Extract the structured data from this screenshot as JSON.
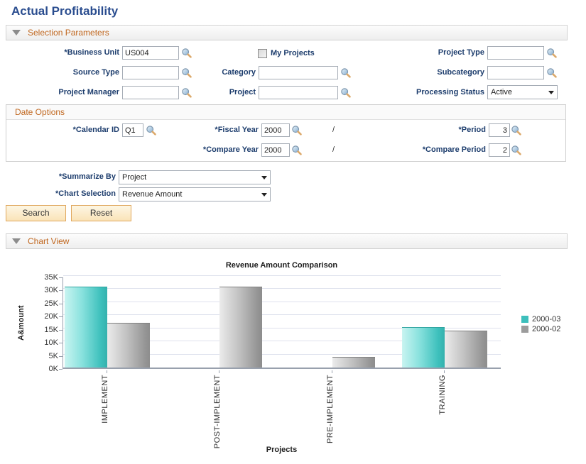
{
  "page": {
    "title": "Actual Profitability"
  },
  "sections": {
    "selection": {
      "label": "Selection Parameters"
    },
    "chart_view": {
      "label": "Chart View"
    }
  },
  "form": {
    "business_unit": {
      "label": "*Business Unit",
      "value": "US004"
    },
    "my_projects": {
      "label": "My Projects",
      "checked": false
    },
    "project_type": {
      "label": "Project Type",
      "value": ""
    },
    "source_type": {
      "label": "Source Type",
      "value": ""
    },
    "category": {
      "label": "Category",
      "value": ""
    },
    "subcategory": {
      "label": "Subcategory",
      "value": ""
    },
    "project_manager": {
      "label": "Project Manager",
      "value": ""
    },
    "project": {
      "label": "Project",
      "value": ""
    },
    "processing_status": {
      "label": "Processing Status",
      "value": "Active"
    },
    "summarize_by": {
      "label": "*Summarize By",
      "value": "Project"
    },
    "chart_selection": {
      "label": "*Chart Selection",
      "value": "Revenue Amount"
    },
    "search_button": "Search",
    "reset_button": "Reset"
  },
  "date_options": {
    "label": "Date Options",
    "calendar_id": {
      "label": "*Calendar ID",
      "value": "Q1"
    },
    "fiscal_year": {
      "label": "*Fiscal Year",
      "value": "2000"
    },
    "period": {
      "label": "*Period",
      "value": "3"
    },
    "compare_year": {
      "label": "*Compare Year",
      "value": "2000"
    },
    "compare_period": {
      "label": "*Compare Period",
      "value": "2"
    },
    "separator": "/"
  },
  "chart_data": {
    "type": "bar",
    "title": "Revenue Amount Comparison",
    "xlabel": "Projects",
    "ylabel": "A&mount",
    "categories": [
      "IMPLEMENT",
      "POST-IMPLEMENT",
      "PRE-IMPLEMENT",
      "TRAINING"
    ],
    "series": [
      {
        "name": "2000-03",
        "color": "#3dbfbc",
        "values": [
          31000,
          0,
          0,
          15500
        ]
      },
      {
        "name": "2000-02",
        "color": "#9c9c9c",
        "values": [
          17000,
          31000,
          4000,
          14000
        ]
      }
    ],
    "ylim": [
      0,
      35000
    ],
    "ytick_step": 5000,
    "ytick_labels": [
      "0K",
      "5K",
      "10K",
      "15K",
      "20K",
      "25K",
      "30K",
      "35K"
    ],
    "grid": true,
    "legend_position": "right"
  },
  "colors": {
    "accent_orange": "#c0671f",
    "label_navy": "#1d3d6d",
    "title_blue": "#2a4d8f",
    "series_teal": "#3dbfbc",
    "series_gray": "#9c9c9c",
    "button_fill": "#fae3b8",
    "button_border": "#e0a85f"
  }
}
